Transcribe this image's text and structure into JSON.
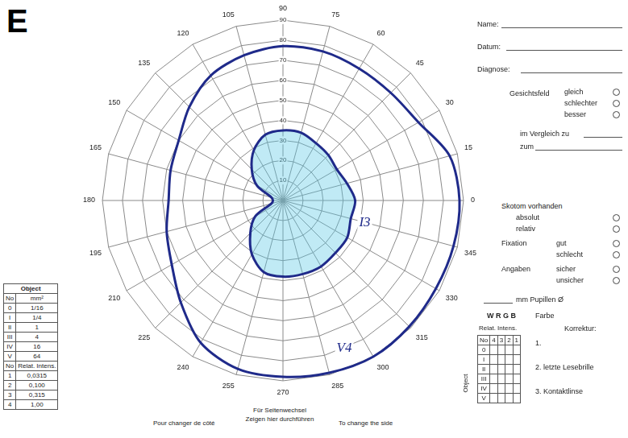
{
  "panel_label": "E",
  "chart_data": {
    "type": "radar",
    "categories": [
      90,
      75,
      60,
      45,
      30,
      15,
      0,
      345,
      330,
      315,
      300,
      285,
      270,
      255,
      240,
      225,
      210,
      195,
      180,
      165,
      150,
      135,
      120,
      105
    ],
    "series": [
      {
        "name": "I3",
        "color": "#1f2a8a",
        "values": [
          35,
          35,
          33,
          32,
          31,
          33,
          36,
          35,
          37,
          37,
          38,
          38,
          38,
          37,
          31,
          23,
          16,
          6,
          5,
          6,
          15,
          22,
          29,
          34
        ]
      },
      {
        "name": "V4",
        "color": "#1f2a8a",
        "values": [
          77,
          77,
          76,
          76,
          78,
          86,
          88,
          88,
          88,
          89,
          90,
          89,
          88,
          87,
          82,
          72,
          64,
          60,
          57,
          58,
          60,
          66,
          72,
          75
        ]
      }
    ],
    "ylim": [
      0,
      90
    ],
    "yticks": [
      10,
      20,
      30,
      40,
      50,
      60,
      70,
      80,
      90
    ],
    "grid": true
  },
  "form": {
    "fields": [
      "Name:",
      "Datum:",
      "Diagnose:"
    ],
    "visual_field": {
      "label": "Gesichtsfeld",
      "options": [
        "gleich",
        "schlechter",
        "besser"
      ],
      "compare": [
        "im Vergleich zu",
        "zum"
      ]
    },
    "checks": [
      {
        "label": "Skotom vorhanden",
        "options": [
          "absolut",
          "relativ"
        ]
      },
      {
        "label": "Fixation",
        "options": [
          "gut",
          "schlecht"
        ]
      },
      {
        "label": "Angaben",
        "options": [
          "sicher",
          "unsicher"
        ]
      }
    ],
    "pupil": "mm Pupillen Ø",
    "stimulus_color": {
      "options": "W R G B",
      "label": "Farbe"
    },
    "correction": {
      "label": "Korrektur:",
      "items": [
        "1.",
        "2. letzte Lesebrille",
        "3. Kontaktlinse"
      ]
    },
    "intensity_grid": {
      "title": "Relat. Intens.",
      "header": [
        "No",
        "4",
        "3",
        "2",
        "1"
      ],
      "rows": [
        "0",
        "I",
        "II",
        "III",
        "IV",
        "V"
      ],
      "side": "Object"
    },
    "object_table": {
      "title": "Object",
      "header": [
        "No",
        "mm²"
      ],
      "rows": [
        [
          "0",
          "1/16"
        ],
        [
          "I",
          "1/4"
        ],
        [
          "II",
          "1"
        ],
        [
          "III",
          "4"
        ],
        [
          "IV",
          "16"
        ],
        [
          "V",
          "64"
        ]
      ],
      "header2": [
        "No",
        "Relat. Intens."
      ],
      "rows2": [
        [
          "1",
          "0,0315"
        ],
        [
          "2",
          "0,100"
        ],
        [
          "3",
          "0,315"
        ],
        [
          "4",
          "1,00"
        ]
      ]
    },
    "footer": {
      "center": [
        "Für Seitenwechsel",
        "Zeigen hier durchführen"
      ],
      "left": "Pour changer de côté",
      "right": "To change the side"
    }
  }
}
